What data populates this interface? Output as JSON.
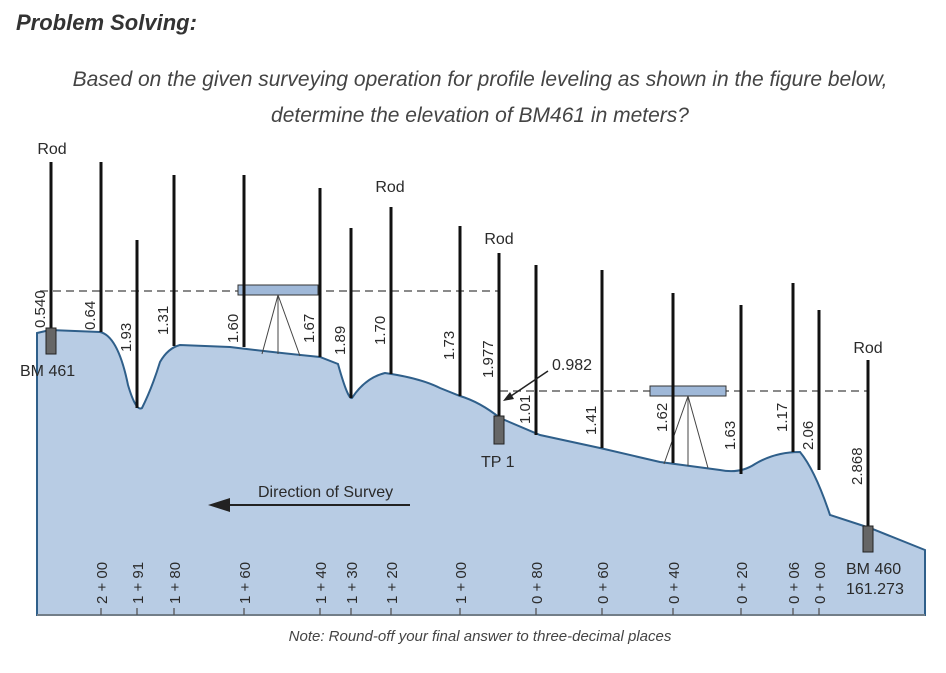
{
  "heading": "Problem Solving:",
  "question": {
    "line1": "Based on the given surveying operation for profile leveling as shown in the figure below,",
    "line2": "determine the elevation of BM461 in meters?"
  },
  "note": "Note: Round-off your final answer to three-decimal places",
  "figure": {
    "rod_labels": [
      "Rod",
      "Rod",
      "Rod",
      "Rod"
    ],
    "direction_label": "Direction of Survey",
    "benchmarks": {
      "start": {
        "name": "BM 461"
      },
      "turning_point": {
        "name": "TP 1"
      },
      "end": {
        "name": "BM 460",
        "elevation": "161.273"
      }
    },
    "backsight_tp1": "0.982",
    "rod_readings": [
      "0.540",
      "0.64",
      "1.93",
      "1.31",
      "1.60",
      "1.67",
      "1.89",
      "1.70",
      "1.73",
      "1.977",
      "1.01",
      "1.41",
      "1.62",
      "1.63",
      "1.17",
      "2.06",
      "2.868"
    ],
    "stations": [
      "2 + 00",
      "1 + 91",
      "1 + 80",
      "1 + 60",
      "1 + 40",
      "1 + 30",
      "1 + 20",
      "1 + 00",
      "0 + 80",
      "0 + 60",
      "0 + 40",
      "0 + 20",
      "0 + 06",
      "0 + 00"
    ],
    "colors": {
      "ground": "#b8cce4",
      "ground_line": "#2f5f8a",
      "instrument": "#9fb8d8",
      "rod": "#111111"
    }
  }
}
